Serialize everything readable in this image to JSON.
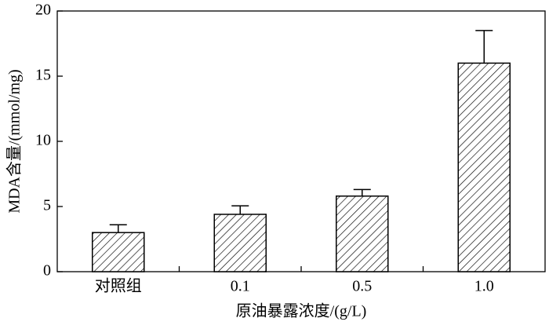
{
  "chart_data": {
    "type": "bar",
    "x_label": "原油暴露浓度/(g/L)",
    "y_label": "MDA含量/(mmol/mg)",
    "categories": [
      "对照组",
      "0.1",
      "0.5",
      "1.0"
    ],
    "values": [
      3.0,
      4.4,
      5.8,
      16.0
    ],
    "errors": [
      0.6,
      0.65,
      0.5,
      2.5
    ],
    "color": "#000000",
    "ylim": [
      0,
      20
    ],
    "yticks": [
      0,
      5,
      10,
      15,
      20
    ]
  }
}
